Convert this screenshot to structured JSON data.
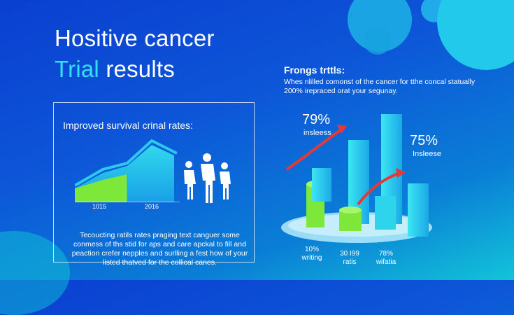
{
  "header": {
    "title_line1": "Hositive cancer",
    "title_line2_accent": "Trial",
    "title_line2_rest": " results"
  },
  "left_panel": {
    "title": "Improved survival crinal rates:",
    "years": [
      "1015",
      "2016"
    ],
    "paragraph": "Tecoucting ratils rates praging text canguer some conmess of ths stid for aps and care apckal to fill and peaction crefer nepples and surlling a fest how of your listed thatved for the collical canes."
  },
  "right_panel": {
    "title": "Frongs trttls:",
    "subtitle": "Whes nlilled comonst of the cancer for tthe concal statually 200% irepraced orat your segunay.",
    "stat1_value": "79%",
    "stat1_label": "insleess",
    "stat2_value": "75%",
    "stat2_label": "Insleese",
    "categories": [
      {
        "line1": "10%",
        "line2": "writing"
      },
      {
        "line1": "30 I99",
        "line2": "ratis"
      },
      {
        "line1": "78%",
        "line2": "wifatia"
      }
    ]
  },
  "colors": {
    "bg_top": "#0a3fd0",
    "bg_bottom": "#12c4d8",
    "accent_cyan": "#30e3ee",
    "green": "#7ee83a",
    "arrow_red": "#e53a34"
  }
}
